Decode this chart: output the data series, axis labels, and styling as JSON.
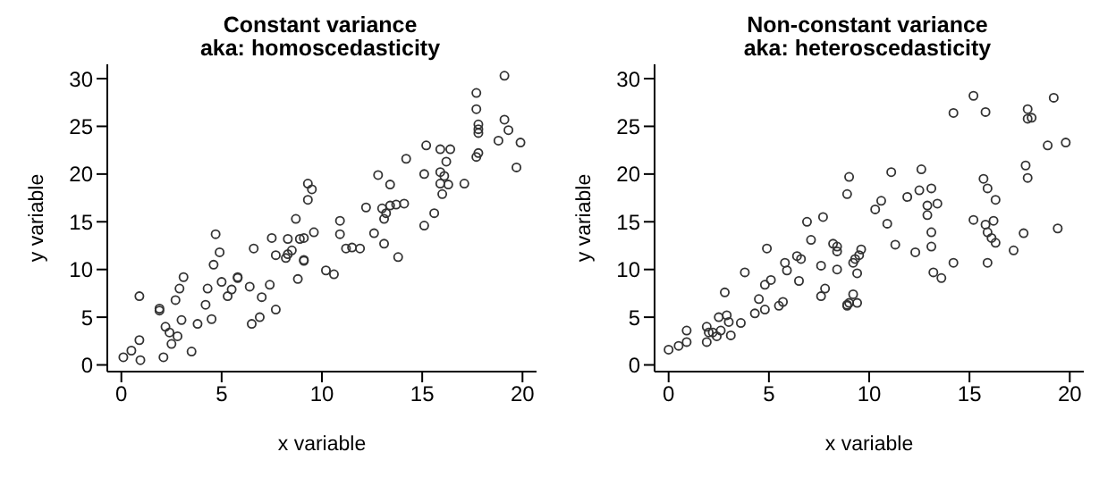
{
  "chart_data": [
    {
      "type": "scatter",
      "title": "Constant variance",
      "subtitle": "aka: homoscedasticity",
      "xlabel": "x variable",
      "ylabel": "y variable",
      "xlim": [
        -0.7,
        20.7
      ],
      "ylim": [
        -0.7,
        31.5
      ],
      "xticks": [
        0,
        5,
        10,
        15,
        20
      ],
      "yticks": [
        0,
        5,
        10,
        15,
        20,
        25,
        30
      ],
      "marker": "circle",
      "grid": false,
      "x": [
        19.1,
        17.7,
        17.7,
        19.1,
        17.8,
        17.8,
        17.8,
        19.3,
        18.8,
        19.9,
        17.8,
        17.7,
        19.7,
        15.2,
        15.9,
        16.4,
        16.2,
        15.9,
        16.1,
        15.9,
        16.3,
        16.0,
        17.1,
        14.2,
        15.1,
        12.8,
        13.4,
        12.2,
        13.0,
        13.2,
        13.1,
        13.4,
        13.7,
        14.1,
        15.6,
        15.1,
        12.6,
        13.1,
        13.8,
        10.9,
        10.9,
        9.3,
        9.5,
        9.3,
        8.7,
        9.6,
        8.9,
        9.1,
        11.2,
        11.5,
        11.9,
        7.5,
        8.3,
        6.6,
        7.7,
        8.3,
        8.2,
        8.5,
        9.1,
        4.7,
        4.9,
        4.6,
        0.9,
        0.1,
        0.5,
        0.95,
        0.9,
        2.1,
        1.9,
        1.9,
        2.2,
        2.4,
        2.5,
        2.8,
        3.0,
        2.7,
        2.9,
        3.1,
        3.5,
        3.8,
        4.2,
        4.3,
        4.5,
        5.0,
        5.3,
        5.5,
        5.8,
        5.8,
        6.4,
        6.5,
        6.9,
        7.0,
        7.4,
        7.7,
        8.8,
        9.1,
        10.2,
        10.6
      ],
      "values": [
        30.3,
        28.5,
        26.8,
        25.7,
        25.2,
        24.7,
        24.3,
        24.6,
        23.5,
        23.3,
        22.2,
        21.8,
        20.7,
        23.0,
        22.6,
        22.6,
        21.3,
        20.2,
        19.8,
        19.0,
        18.9,
        17.9,
        19.0,
        21.6,
        20.0,
        19.9,
        18.9,
        16.5,
        16.4,
        15.9,
        15.3,
        16.7,
        16.8,
        16.9,
        15.9,
        14.6,
        13.8,
        12.7,
        11.3,
        13.7,
        15.1,
        19.0,
        18.4,
        17.3,
        15.3,
        13.9,
        13.2,
        13.3,
        12.2,
        12.3,
        12.2,
        13.3,
        13.2,
        12.2,
        11.5,
        11.6,
        11.2,
        12.0,
        11.0,
        13.7,
        11.8,
        10.5,
        7.2,
        0.8,
        1.5,
        0.5,
        2.6,
        0.8,
        5.7,
        5.9,
        4.0,
        3.4,
        2.2,
        3.0,
        4.7,
        6.8,
        8.0,
        9.2,
        1.4,
        4.3,
        6.3,
        8.0,
        4.8,
        8.7,
        7.2,
        7.9,
        9.2,
        9.1,
        8.2,
        4.3,
        5.0,
        7.1,
        8.4,
        5.8,
        9.0,
        10.9,
        9.9,
        9.5
      ],
      "color": "#333333"
    },
    {
      "type": "scatter",
      "title": "Non-constant variance",
      "subtitle": "aka: heteroscedasticity",
      "xlabel": "x variable",
      "ylabel": "y variable",
      "xlim": [
        -0.7,
        20.7
      ],
      "ylim": [
        -0.7,
        31.5
      ],
      "xticks": [
        0,
        5,
        10,
        15,
        20
      ],
      "yticks": [
        0,
        5,
        10,
        15,
        20,
        25,
        30
      ],
      "marker": "circle",
      "grid": false,
      "x": [
        15.2,
        19.2,
        14.2,
        15.8,
        17.9,
        17.9,
        18.1,
        18.9,
        19.8,
        17.8,
        17.9,
        15.7,
        15.9,
        16.3,
        13.1,
        12.5,
        12.6,
        11.1,
        9.0,
        8.9,
        11.9,
        10.6,
        10.3,
        12.9,
        13.4,
        12.9,
        10.9,
        15.2,
        15.8,
        16.2,
        15.9,
        16.1,
        17.7,
        19.4,
        17.2,
        13.1,
        13.1,
        12.3,
        11.3,
        6.9,
        7.7,
        7.1,
        8.2,
        8.4,
        8.4,
        9.6,
        9.5,
        9.3,
        4.9,
        5.8,
        6.4,
        6.6,
        7.6,
        0.0,
        0.5,
        0.9,
        0.9,
        1.9,
        1.9,
        2.0,
        2.2,
        2.4,
        2.5,
        2.6,
        2.9,
        3.0,
        3.1,
        2.8,
        3.6,
        3.8,
        4.3,
        4.5,
        4.8,
        4.8,
        5.1,
        5.5,
        5.7,
        5.9,
        6.5,
        7.6,
        7.8,
        8.4,
        8.9,
        8.9,
        9.0,
        9.2,
        9.2,
        9.4,
        9.4,
        13.2,
        13.6,
        14.2,
        15.9,
        16.3
      ],
      "values": [
        28.2,
        28.0,
        26.4,
        26.5,
        26.8,
        25.8,
        25.9,
        23.0,
        23.3,
        20.9,
        19.6,
        19.5,
        18.5,
        17.3,
        18.5,
        18.3,
        20.5,
        20.2,
        19.7,
        17.9,
        17.6,
        17.2,
        16.3,
        16.7,
        16.9,
        15.7,
        14.8,
        15.2,
        14.7,
        15.1,
        13.9,
        13.3,
        13.8,
        14.3,
        12.0,
        13.9,
        12.4,
        11.8,
        12.6,
        15.0,
        15.5,
        13.1,
        12.7,
        12.4,
        11.9,
        12.1,
        11.5,
        11.1,
        12.2,
        10.7,
        11.4,
        11.1,
        10.4,
        1.6,
        2.0,
        2.4,
        3.6,
        2.4,
        4.0,
        3.4,
        3.4,
        3.0,
        5.0,
        3.6,
        5.2,
        4.5,
        3.1,
        7.6,
        4.4,
        9.7,
        5.4,
        6.9,
        5.8,
        8.4,
        8.9,
        6.2,
        6.6,
        9.9,
        8.8,
        7.2,
        8.0,
        10.0,
        6.2,
        6.3,
        6.5,
        7.4,
        10.7,
        6.5,
        9.6,
        9.7,
        9.1,
        10.7,
        10.7,
        12.8
      ],
      "color": "#333333"
    }
  ]
}
